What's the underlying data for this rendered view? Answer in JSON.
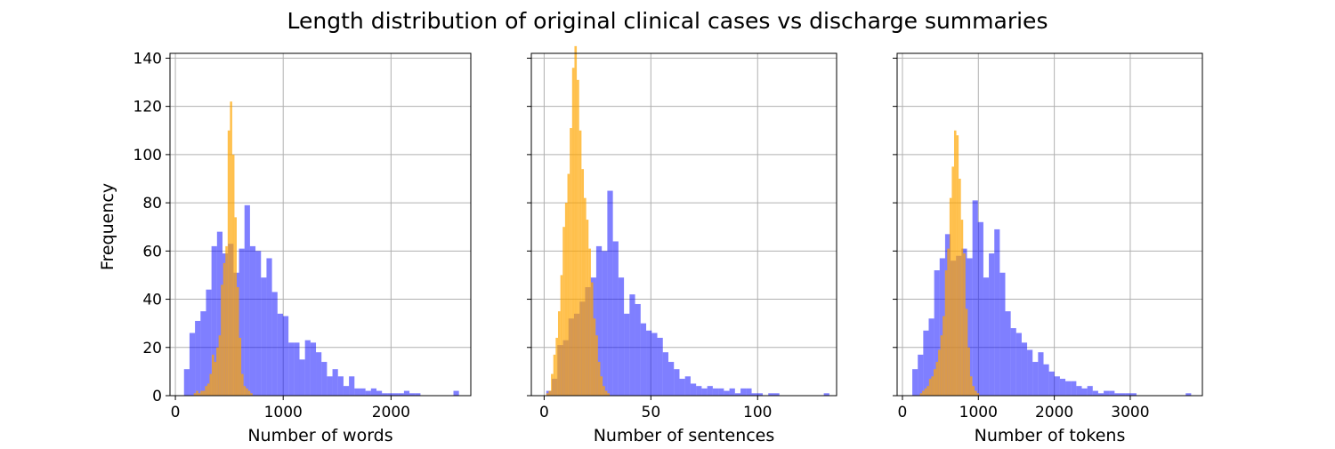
{
  "chart_data": {
    "type": "histogram",
    "title": "Length distribution of original clinical cases vs discharge summaries",
    "ylabel": "Frequency",
    "ylim": [
      0,
      142
    ],
    "yticks": [
      0,
      20,
      40,
      60,
      80,
      100,
      120,
      140
    ],
    "grid": true,
    "series_colors": {
      "blue": "#0000ff",
      "orange": "#ffa500"
    },
    "panels": [
      {
        "xlabel": "Number of words",
        "xlim": [
          -50,
          2740
        ],
        "xticks": [
          0,
          1000,
          2000
        ],
        "hist_blue": {
          "start": 80,
          "width": 51,
          "counts": [
            11,
            26,
            31,
            35,
            44,
            62,
            68,
            59,
            63,
            51,
            61,
            79,
            62,
            60,
            49,
            57,
            43,
            34,
            33,
            22,
            22,
            15,
            23,
            22,
            18,
            14,
            8,
            11,
            8,
            4,
            8,
            3,
            3,
            2,
            3,
            2,
            1,
            1,
            1,
            1,
            2,
            1,
            1,
            0,
            0,
            0,
            0,
            0,
            0,
            2
          ]
        },
        "hist_orange": {
          "start": 170,
          "width": 21,
          "counts": [
            1,
            2,
            1,
            2,
            2,
            4,
            5,
            9,
            17,
            14,
            20,
            25,
            46,
            55,
            62,
            110,
            122,
            100,
            74,
            45,
            24,
            9,
            4,
            3,
            2,
            1
          ]
        }
      },
      {
        "xlabel": "Number of sentences",
        "xlim": [
          -6,
          137
        ],
        "xticks": [
          0,
          50,
          100
        ],
        "hist_blue": {
          "start": 1,
          "width": 2.6,
          "counts": [
            2,
            7,
            21,
            23,
            32,
            34,
            39,
            45,
            49,
            62,
            60,
            85,
            64,
            49,
            34,
            42,
            38,
            30,
            27,
            26,
            24,
            18,
            14,
            11,
            7,
            8,
            5,
            4,
            3,
            4,
            3,
            3,
            2,
            3,
            1,
            3,
            3,
            1,
            1,
            0,
            1,
            1,
            0,
            0,
            0,
            0,
            0,
            0,
            0,
            0,
            1
          ]
        },
        "hist_orange": {
          "start": 1,
          "width": 1.1,
          "counts": [
            1,
            2,
            9,
            17,
            24,
            35,
            50,
            70,
            80,
            92,
            111,
            136,
            145,
            131,
            110,
            94,
            82,
            73,
            61,
            47,
            32,
            25,
            14,
            8,
            4,
            2,
            1
          ]
        }
      },
      {
        "xlabel": "Number of tokens",
        "xlim": [
          -70,
          3950
        ],
        "xticks": [
          0,
          1000,
          2000,
          3000
        ],
        "hist_blue": {
          "start": 130,
          "width": 72,
          "counts": [
            11,
            17,
            27,
            32,
            52,
            57,
            67,
            56,
            58,
            61,
            57,
            81,
            72,
            49,
            59,
            69,
            51,
            35,
            28,
            26,
            22,
            19,
            14,
            18,
            13,
            10,
            8,
            7,
            6,
            6,
            4,
            3,
            4,
            2,
            1,
            2,
            2,
            1,
            1,
            1,
            1,
            0,
            0,
            0,
            0,
            0,
            0,
            0,
            0,
            0,
            1
          ]
        },
        "hist_orange": {
          "start": 230,
          "width": 30,
          "counts": [
            1,
            2,
            3,
            4,
            7,
            8,
            11,
            14,
            19,
            25,
            33,
            52,
            61,
            82,
            95,
            110,
            108,
            90,
            73,
            59,
            36,
            20,
            8,
            4,
            2,
            1
          ]
        }
      }
    ]
  }
}
